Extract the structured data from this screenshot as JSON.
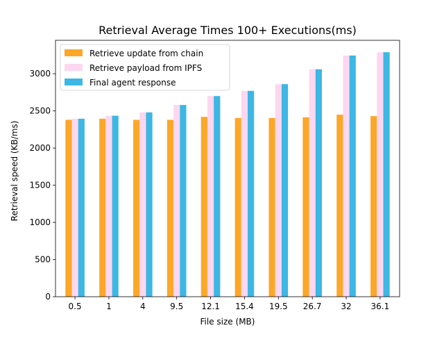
{
  "chart_data": {
    "type": "bar",
    "title": "Retrieval Average Times 100+ Executions(ms)",
    "xlabel": "File size (MB)",
    "ylabel": "Retrieval speed (KB/ms)",
    "categories": [
      "0.5",
      "1",
      "4",
      "9.5",
      "12.1",
      "15.4",
      "19.5",
      "26.7",
      "32",
      "36.1"
    ],
    "ylim": [
      0,
      3450
    ],
    "yticks": [
      0,
      500,
      1000,
      1500,
      2000,
      2500,
      3000
    ],
    "series": [
      {
        "name": "Retrieve update from chain",
        "color": "#fca728",
        "values": [
          2380,
          2395,
          2380,
          2380,
          2420,
          2405,
          2405,
          2415,
          2450,
          2430
        ]
      },
      {
        "name": "Retrieve payload from IPFS",
        "color": "#fdd7f0",
        "values": [
          2395,
          2435,
          2480,
          2580,
          2700,
          2770,
          2860,
          3060,
          3245,
          3290
        ]
      },
      {
        "name": "Final agent response",
        "color": "#3db7e4",
        "values": [
          2395,
          2435,
          2480,
          2580,
          2700,
          2770,
          2860,
          3060,
          3245,
          3290
        ]
      }
    ],
    "grid": false,
    "legend_position": "top-left"
  }
}
